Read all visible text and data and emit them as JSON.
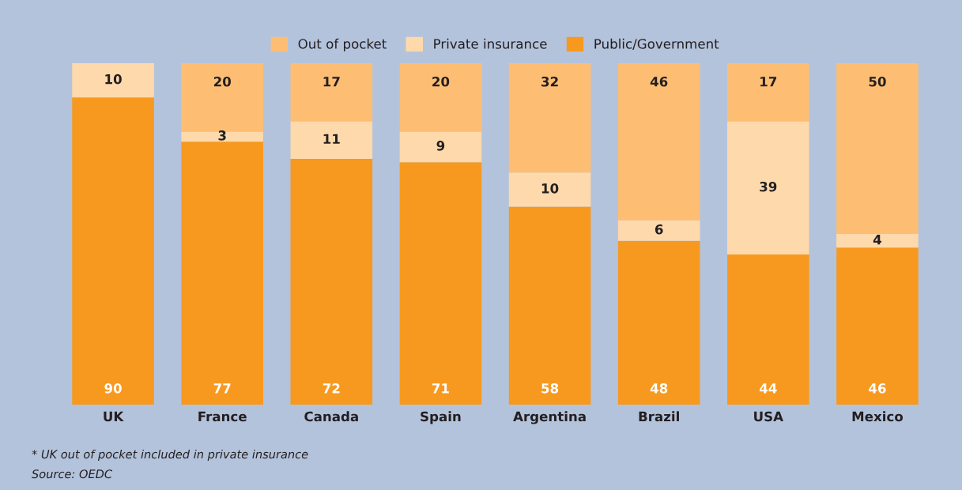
{
  "chart_data": {
    "type": "bar",
    "stacked": true,
    "data_labels": true,
    "legend": "top",
    "categories": [
      "UK",
      "France",
      "Canada",
      "Spain",
      "Argentina",
      "Brazil",
      "USA",
      "Mexico"
    ],
    "series": [
      {
        "name": "Public/Government",
        "color": "#f7991f",
        "values": [
          90,
          77,
          72,
          71,
          58,
          48,
          44,
          46
        ]
      },
      {
        "name": "Private insurance",
        "color": "#fed9ab",
        "values": [
          10,
          3,
          11,
          9,
          10,
          6,
          39,
          4
        ]
      },
      {
        "name": "Out of pocket",
        "color": "#fdbe73",
        "values": [
          null,
          20,
          17,
          20,
          32,
          46,
          17,
          50
        ]
      }
    ],
    "annotations": [
      "* UK out of pocket included in private insurance",
      "Source: OEDC"
    ]
  }
}
